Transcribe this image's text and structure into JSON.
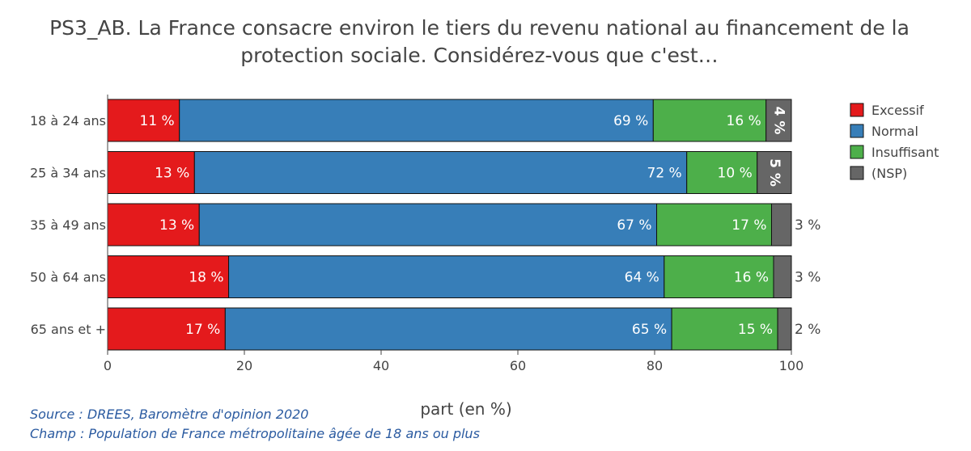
{
  "title": {
    "line1": "PS3_AB. La France consacre environ le tiers du revenu national au financement de la",
    "line2": "protection sociale. Considérez-vous que c'est…"
  },
  "footer": {
    "source": "Source : DREES, Baromètre d'opinion 2020",
    "champ": "Champ : Population de France métropolitaine âgée de 18 ans ou plus"
  },
  "chart_data": {
    "type": "bar",
    "orientation": "horizontal",
    "stacked": true,
    "categories": [
      "18 à 24 ans",
      "25 à 34 ans",
      "35 à 49 ans",
      "50 à 64 ans",
      "65 ans et +"
    ],
    "series": [
      {
        "name": "Excessif",
        "color": "#e41a1c",
        "values": [
          10.5,
          12.7,
          13.4,
          17.7,
          17.2
        ],
        "labels": [
          "11 %",
          "13 %",
          "13 %",
          "18 %",
          "17 %"
        ]
      },
      {
        "name": "Normal",
        "color": "#377eb8",
        "values": [
          69.3,
          72.0,
          66.9,
          63.7,
          65.3
        ],
        "labels": [
          "69 %",
          "72 %",
          "67 %",
          "64 %",
          "65 %"
        ]
      },
      {
        "name": "Insuffisant",
        "color": "#4daf4a",
        "values": [
          16.5,
          10.3,
          16.8,
          16.0,
          15.5
        ],
        "labels": [
          "16 %",
          "10 %",
          "17 %",
          "16 %",
          "15 %"
        ]
      },
      {
        "name": "(NSP)",
        "color": "#666666",
        "values": [
          3.7,
          5.0,
          2.9,
          2.6,
          2.0
        ],
        "labels": [
          "4 %",
          "5 %",
          "3 %",
          "3 %",
          "2 %"
        ]
      }
    ],
    "xlabel": "part (en %)",
    "ylabel": "",
    "xlim": [
      0,
      100
    ],
    "xticks": [
      0,
      20,
      40,
      60,
      80,
      100
    ],
    "legend": "top-right"
  }
}
